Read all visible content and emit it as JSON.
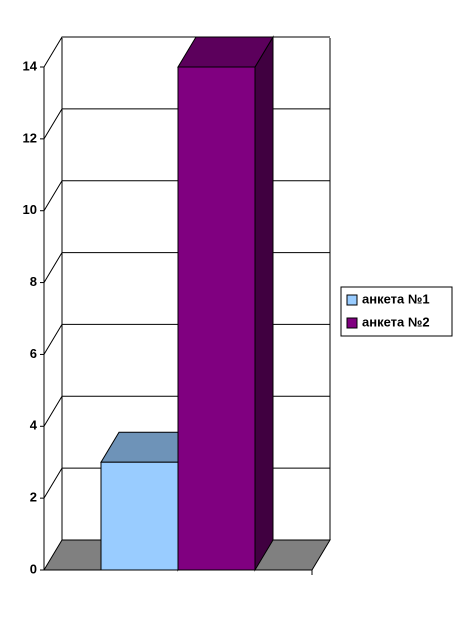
{
  "chart_data": {
    "type": "bar3d",
    "categories": [
      null
    ],
    "series": [
      {
        "name": "анкета №1",
        "color": "#99ccff",
        "values": [
          3
        ]
      },
      {
        "name": "анкета №2",
        "color": "#800080",
        "values": [
          14
        ]
      }
    ],
    "ylim": [
      0,
      14
    ],
    "yticks": [
      0,
      2,
      4,
      6,
      8,
      10,
      12,
      14
    ],
    "grid": true,
    "legend": "right"
  }
}
